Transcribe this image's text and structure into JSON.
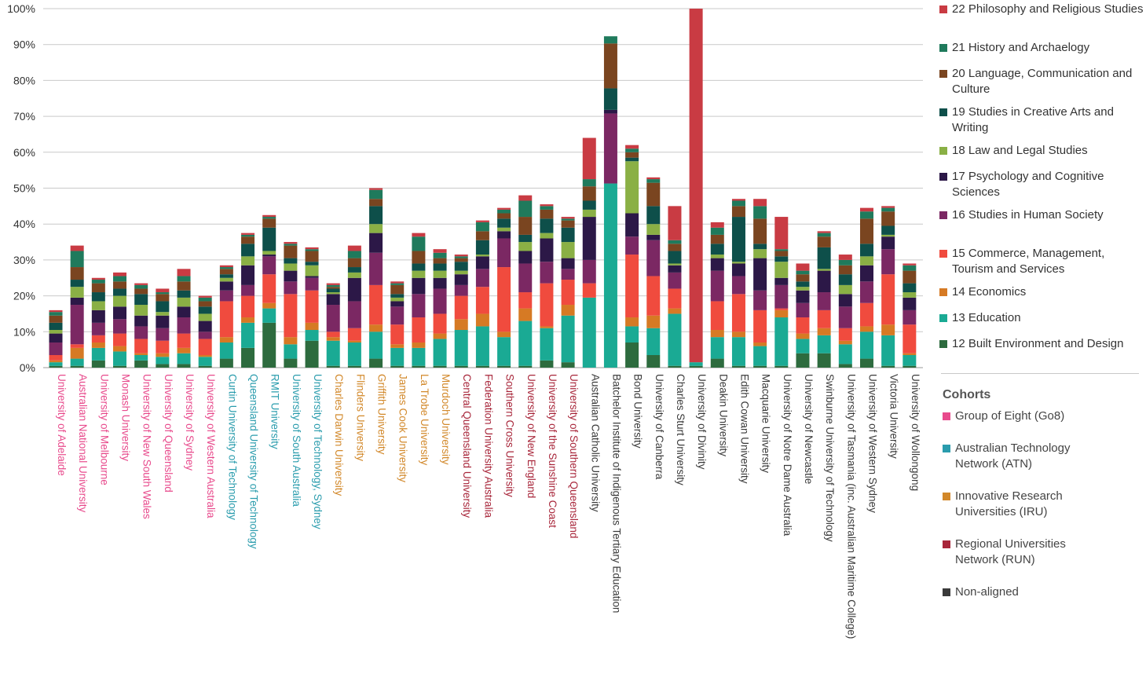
{
  "chart_data": {
    "type": "bar",
    "stacked": true,
    "title": "",
    "xlabel": "",
    "ylabel": "",
    "ylim": [
      0,
      100
    ],
    "yticks": [
      "0%",
      "10%",
      "20%",
      "30%",
      "40%",
      "50%",
      "60%",
      "70%",
      "80%",
      "90%",
      "100%"
    ],
    "grid": true,
    "legend_position": "right",
    "categories": [
      "University of Adelaide",
      "Australian National University",
      "University of Melbourne",
      "Monash University",
      "University of New South Wales",
      "University of Queensland",
      "University of Sydney",
      "University of Western Australia",
      "Curtin University of Technology",
      "Queensland University of Technology",
      "RMIT University",
      "University of South Australia",
      "University of Technology, Sydney",
      "Charles Darwin University",
      "Flinders University",
      "Griffith University",
      "James Cook University",
      "La Trobe University",
      "Murdoch University",
      "Central Queensland University",
      "Federation University Australia",
      "Southern Cross University",
      "University of New England",
      "University of the Sunshine Coast",
      "University of Southern Queensland",
      "Australian Catholic University",
      "Batchelor Institute of Indigenous Tertiary Education",
      "Bond University",
      "University of Canberra",
      "Charles Sturt University",
      "University of Divinity",
      "Deakin University",
      "Edith Cowan University",
      "Macquarie University",
      "University of Notre Dame Australia",
      "University of Newcastle",
      "Swinburne University of Technology",
      "University of Tasmania (inc. Australian Maritime College)",
      "University of Western Sydney",
      "Victoria University",
      "University of Wollongong"
    ],
    "category_cohort": [
      "go8",
      "go8",
      "go8",
      "go8",
      "go8",
      "go8",
      "go8",
      "go8",
      "atn",
      "atn",
      "atn",
      "atn",
      "atn",
      "iru",
      "iru",
      "iru",
      "iru",
      "iru",
      "iru",
      "run",
      "run",
      "run",
      "run",
      "run",
      "run",
      "na",
      "na",
      "na",
      "na",
      "na",
      "na",
      "na",
      "na",
      "na",
      "na",
      "na",
      "na",
      "na",
      "na",
      "na",
      "na"
    ],
    "series": [
      {
        "name": "12 Built Environment and Design",
        "color": "#2d6b3e",
        "values": [
          0.5,
          0.5,
          2,
          0.5,
          2,
          1,
          1,
          0.5,
          2.5,
          5.5,
          12.5,
          2.5,
          7.5,
          0.5,
          0.5,
          2.5,
          0.5,
          0.5,
          0.5,
          0.5,
          0.5,
          0.5,
          0.5,
          2,
          1.5,
          0,
          0,
          7,
          3.5,
          0.5,
          0.5,
          2.5,
          0.5,
          0.5,
          0.5,
          4,
          4,
          1,
          2.5,
          0.5,
          0.5
        ]
      },
      {
        "name": "13 Education",
        "color": "#1aaa94",
        "values": [
          1,
          2,
          3.5,
          4,
          1.5,
          2,
          3,
          2.5,
          4.5,
          7,
          4,
          4,
          3,
          7,
          6.5,
          7.5,
          5,
          5,
          7.5,
          10,
          11,
          8,
          12.5,
          9,
          13,
          19.5,
          51.3,
          4.5,
          7.5,
          14.5,
          1,
          6,
          8,
          5.5,
          13.5,
          4,
          5,
          5.5,
          7.5,
          8.5,
          3
        ]
      },
      {
        "name": "14 Economics",
        "color": "#d67a24",
        "values": [
          0.5,
          3,
          1.5,
          1.5,
          0.5,
          1,
          1.5,
          0.5,
          1.5,
          1.5,
          1.5,
          2,
          2,
          1,
          0.5,
          2,
          1,
          1.5,
          1.5,
          3,
          3.5,
          1.5,
          3.5,
          0.5,
          3,
          0,
          0,
          2.5,
          3.5,
          1.5,
          0,
          2,
          1.5,
          1,
          2,
          1.5,
          2,
          1,
          1.5,
          3,
          0.5
        ]
      },
      {
        "name": "15 Commerce, Management, Tourism and Services",
        "color": "#f04b3e",
        "values": [
          1.5,
          1,
          2,
          3.5,
          4,
          3.5,
          4,
          4.5,
          10,
          6,
          8,
          12,
          9,
          1.5,
          3.5,
          11,
          5.5,
          7,
          5.5,
          6.5,
          7.5,
          18,
          4.5,
          12,
          7,
          4,
          0,
          17.5,
          11,
          5.5,
          0,
          8,
          10.5,
          9,
          0.5,
          4.5,
          5,
          3.5,
          6.5,
          14,
          8
        ]
      },
      {
        "name": "16 Studies in Human Society",
        "color": "#7b2863",
        "values": [
          3.5,
          11,
          3.5,
          4,
          3.5,
          3.5,
          4.5,
          2,
          3,
          3,
          5,
          3.5,
          3.5,
          7.5,
          7.5,
          9,
          5,
          6.5,
          7,
          3,
          5,
          8,
          8,
          6,
          3,
          6.5,
          19.5,
          5,
          10,
          4.5,
          0,
          8.5,
          5,
          5.5,
          6.5,
          4,
          5,
          6,
          6,
          7,
          4
        ]
      },
      {
        "name": "17 Psychology and Cognitive Sciences",
        "color": "#2c1847",
        "values": [
          2.5,
          2,
          3.5,
          3.5,
          3,
          3.5,
          3,
          3,
          2.5,
          5.5,
          0.5,
          3,
          0.5,
          3,
          6.5,
          5.5,
          1.5,
          4.5,
          3,
          3,
          3.5,
          2,
          3.5,
          6.5,
          3,
          12,
          1,
          6.5,
          1.5,
          2,
          0,
          3.5,
          3.5,
          9,
          2,
          3.5,
          6,
          3.5,
          4.5,
          3.5,
          3.5
        ]
      },
      {
        "name": "18 Law and Legal Studies",
        "color": "#8ab045",
        "values": [
          1,
          3,
          2.5,
          3,
          3,
          1,
          2.5,
          2,
          1,
          2.5,
          1,
          2,
          3,
          0.5,
          1.5,
          2.5,
          1,
          2,
          2,
          1,
          0.5,
          1,
          2.5,
          1.5,
          4.5,
          2,
          0,
          14.5,
          3,
          0.5,
          0,
          1,
          0.5,
          2.5,
          4.5,
          1,
          0.5,
          2.5,
          2.5,
          0.5,
          1.5
        ]
      },
      {
        "name": "19 Studies in Creative Arts and Writing",
        "color": "#0e4f4a",
        "values": [
          2,
          2,
          2.5,
          2,
          3,
          3,
          2,
          2,
          1,
          3.5,
          6.5,
          1.5,
          1,
          1,
          1.5,
          5,
          1,
          2,
          2,
          2.5,
          4,
          2.5,
          2,
          4,
          4,
          2.5,
          6,
          1,
          5,
          3.5,
          0,
          3,
          12.5,
          1.5,
          1.5,
          1.5,
          6,
          3,
          3.5,
          2.5,
          2.5
        ]
      },
      {
        "name": "20 Language, Communication and Culture",
        "color": "#7a4520",
        "values": [
          2,
          3.5,
          2.5,
          2,
          1.5,
          2,
          2.5,
          1.5,
          1.5,
          2,
          2.5,
          3.5,
          3,
          0.5,
          2.5,
          2,
          2.5,
          3.5,
          1.5,
          1,
          2.5,
          1.5,
          5,
          2.5,
          2,
          4,
          12.5,
          1.5,
          6.5,
          2,
          0,
          2.5,
          3,
          7,
          1.5,
          2,
          3,
          2.5,
          7,
          4,
          3.5
        ]
      },
      {
        "name": "21 History and Archaelogy",
        "color": "#1f7a5c",
        "values": [
          1,
          4.5,
          1,
          1.5,
          1,
          0.5,
          1.5,
          1,
          0.5,
          0.5,
          0.5,
          0.5,
          0.5,
          0.5,
          2,
          2.5,
          0.5,
          4,
          1.5,
          0.5,
          2.5,
          1,
          4.5,
          1,
          0.5,
          2,
          2,
          1,
          1,
          1,
          0,
          2,
          1.5,
          3.5,
          0.5,
          1,
          1,
          1.5,
          2,
          1,
          1.5
        ]
      },
      {
        "name": "22 Philosophy and Religious Studies",
        "color": "#c93b43",
        "values": [
          0.5,
          1.5,
          0.5,
          1,
          0.5,
          1,
          2,
          0.5,
          0.5,
          0.5,
          0.5,
          0.5,
          0.5,
          0.5,
          1.5,
          0.5,
          0.5,
          1,
          1,
          0.5,
          0.5,
          0.5,
          1.5,
          0.5,
          0.5,
          11.5,
          0,
          1,
          0.5,
          9.5,
          98.5,
          1.5,
          0.5,
          2,
          9,
          2,
          0.5,
          1.5,
          1,
          0.5,
          0.5
        ]
      }
    ]
  },
  "cohorts": {
    "title": "Cohorts",
    "items": [
      {
        "key": "go8",
        "label": "Group of Eight (Go8)",
        "color": "#e84a8c"
      },
      {
        "key": "atn",
        "label": "Australian Technology Network (ATN)",
        "color": "#2a9cad"
      },
      {
        "key": "iru",
        "label": "Innovative Research Universities (IRU)",
        "color": "#d2882a"
      },
      {
        "key": "run",
        "label": "Regional Universities Network (RUN)",
        "color": "#a8263a"
      },
      {
        "key": "na",
        "label": "Non-aligned",
        "color": "#3a3a3a"
      }
    ]
  }
}
